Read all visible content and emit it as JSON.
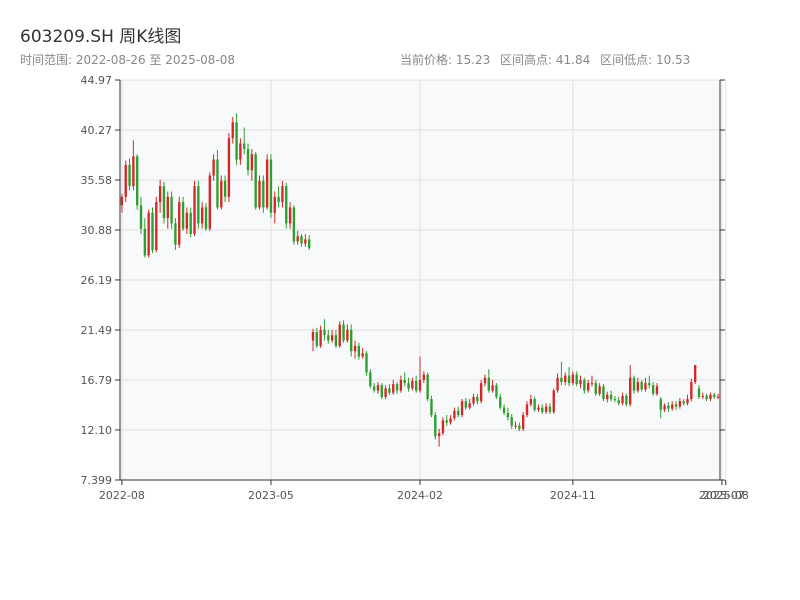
{
  "header": {
    "title": "603209.SH 周K线图",
    "range_label": "时间范围: 2022-08-26 至 2025-08-08",
    "current_price": "当前价格: 15.23",
    "high": "区间高点: 41.84",
    "low": "区间低点: 10.53"
  },
  "colors": {
    "up": "#d62728",
    "down": "#2ca02c",
    "axis": "#333333",
    "grid": "#e0e0e0",
    "plot_bg": "#f8f9fb"
  },
  "chart_data": {
    "type": "candlestick",
    "ylim": [
      7.399,
      44.97
    ],
    "y_ticks": [
      "7.399",
      "12.10",
      "16.79",
      "21.49",
      "26.19",
      "30.88",
      "35.58",
      "40.27",
      "44.97"
    ],
    "x_ticks": [
      {
        "label": "2022-08",
        "week": 0
      },
      {
        "label": "2023-05",
        "week": 39
      },
      {
        "label": "2024-02",
        "week": 78
      },
      {
        "label": "2024-11",
        "week": 118
      },
      {
        "label": "2025-07",
        "week": 157
      },
      {
        "label": "2025-08",
        "week": 158
      }
    ],
    "candles": [
      [
        33.2,
        34.0,
        32.5,
        34.3
      ],
      [
        34.0,
        37.0,
        33.5,
        37.4
      ],
      [
        37.0,
        35.0,
        34.6,
        37.6
      ],
      [
        35.0,
        37.8,
        34.6,
        39.3
      ],
      [
        37.8,
        33.2,
        32.8,
        38.0
      ],
      [
        33.2,
        31.0,
        30.5,
        34.0
      ],
      [
        31.0,
        28.5,
        28.3,
        32.0
      ],
      [
        28.5,
        32.5,
        28.3,
        32.8
      ],
      [
        32.5,
        29.0,
        28.7,
        33.0
      ],
      [
        29.0,
        33.5,
        28.8,
        34.0
      ],
      [
        33.5,
        35.0,
        32.5,
        35.6
      ],
      [
        35.0,
        32.0,
        31.5,
        35.4
      ],
      [
        32.0,
        34.0,
        31.0,
        34.5
      ],
      [
        34.0,
        31.5,
        31.0,
        34.5
      ],
      [
        31.5,
        29.5,
        29.0,
        32.0
      ],
      [
        29.5,
        33.5,
        29.2,
        34.0
      ],
      [
        33.5,
        31.0,
        30.8,
        34.0
      ],
      [
        31.0,
        32.5,
        30.5,
        33.0
      ],
      [
        32.5,
        30.5,
        30.2,
        33.0
      ],
      [
        30.5,
        35.0,
        30.3,
        35.5
      ],
      [
        35.0,
        31.5,
        31.0,
        35.5
      ],
      [
        31.5,
        33.0,
        31.0,
        33.5
      ],
      [
        33.0,
        31.0,
        30.8,
        33.4
      ],
      [
        31.0,
        36.0,
        30.8,
        36.3
      ],
      [
        36.0,
        37.5,
        35.5,
        38.0
      ],
      [
        37.5,
        33.0,
        32.8,
        38.4
      ],
      [
        33.0,
        35.5,
        32.8,
        36.0
      ],
      [
        35.5,
        34.0,
        33.5,
        36.0
      ],
      [
        34.0,
        39.5,
        33.5,
        40.0
      ],
      [
        39.5,
        41.0,
        39.0,
        41.5
      ],
      [
        41.0,
        37.5,
        37.0,
        41.84
      ],
      [
        37.5,
        39.0,
        37.0,
        39.5
      ],
      [
        39.0,
        38.5,
        38.0,
        40.5
      ],
      [
        38.5,
        36.5,
        36.0,
        39.0
      ],
      [
        36.5,
        38.0,
        35.5,
        38.5
      ],
      [
        38.0,
        33.0,
        32.8,
        38.2
      ],
      [
        33.0,
        35.5,
        32.8,
        36.0
      ],
      [
        35.5,
        33.0,
        32.5,
        36.0
      ],
      [
        33.0,
        37.5,
        32.8,
        38.0
      ],
      [
        37.5,
        32.5,
        32.0,
        38.0
      ],
      [
        32.5,
        34.0,
        31.5,
        34.5
      ],
      [
        34.0,
        33.5,
        33.0,
        35.0
      ],
      [
        33.5,
        35.0,
        33.0,
        35.5
      ],
      [
        35.0,
        31.5,
        31.0,
        35.3
      ],
      [
        31.5,
        33.0,
        31.0,
        33.5
      ],
      [
        33.0,
        29.8,
        29.5,
        33.2
      ],
      [
        29.8,
        30.3,
        29.5,
        30.8
      ],
      [
        30.3,
        29.6,
        29.3,
        30.5
      ],
      [
        29.6,
        30.0,
        29.3,
        30.5
      ],
      [
        30.0,
        29.2,
        29.0,
        30.4
      ],
      [
        20.5,
        21.3,
        19.5,
        21.6
      ],
      [
        21.3,
        20.0,
        19.8,
        21.7
      ],
      [
        20.0,
        21.5,
        19.8,
        21.9
      ],
      [
        21.5,
        21.0,
        20.5,
        22.5
      ],
      [
        21.0,
        20.5,
        20.2,
        21.5
      ],
      [
        20.5,
        21.0,
        20.3,
        21.5
      ],
      [
        21.0,
        20.0,
        19.8,
        21.5
      ],
      [
        20.0,
        22.0,
        19.8,
        22.3
      ],
      [
        22.0,
        20.5,
        20.3,
        22.4
      ],
      [
        20.5,
        21.5,
        20.3,
        22.0
      ],
      [
        21.5,
        19.5,
        19.0,
        22.0
      ],
      [
        19.5,
        20.0,
        18.8,
        20.5
      ],
      [
        20.0,
        19.0,
        18.7,
        20.3
      ],
      [
        19.0,
        19.3,
        18.8,
        19.8
      ],
      [
        19.3,
        17.5,
        17.2,
        19.5
      ],
      [
        17.5,
        16.2,
        16.0,
        17.8
      ],
      [
        16.2,
        15.8,
        15.6,
        16.5
      ],
      [
        15.8,
        16.3,
        15.5,
        16.6
      ],
      [
        16.3,
        15.2,
        15.0,
        16.5
      ],
      [
        15.2,
        16.0,
        15.0,
        16.3
      ],
      [
        16.0,
        15.6,
        15.4,
        16.4
      ],
      [
        15.6,
        16.4,
        15.4,
        16.8
      ],
      [
        16.4,
        15.8,
        15.5,
        16.6
      ],
      [
        15.8,
        16.8,
        15.6,
        17.2
      ],
      [
        16.8,
        16.5,
        16.2,
        17.5
      ],
      [
        16.5,
        16.0,
        15.7,
        17.0
      ],
      [
        16.0,
        16.7,
        15.8,
        17.0
      ],
      [
        16.7,
        15.8,
        15.6,
        17.2
      ],
      [
        15.8,
        16.8,
        15.6,
        19.0
      ],
      [
        16.8,
        17.3,
        16.5,
        17.6
      ],
      [
        17.3,
        15.0,
        14.8,
        17.5
      ],
      [
        15.0,
        13.5,
        13.3,
        15.3
      ],
      [
        13.5,
        11.5,
        11.2,
        13.8
      ],
      [
        11.5,
        11.8,
        10.53,
        12.2
      ],
      [
        11.8,
        13.0,
        11.6,
        13.3
      ],
      [
        13.0,
        12.8,
        12.5,
        13.5
      ],
      [
        12.8,
        13.2,
        12.6,
        13.5
      ],
      [
        13.2,
        13.9,
        13.0,
        14.2
      ],
      [
        13.9,
        13.5,
        13.3,
        14.3
      ],
      [
        13.5,
        14.8,
        13.3,
        15.0
      ],
      [
        14.8,
        14.2,
        14.0,
        15.1
      ],
      [
        14.2,
        14.6,
        14.0,
        15.0
      ],
      [
        14.6,
        15.2,
        14.4,
        15.5
      ],
      [
        15.2,
        14.8,
        14.5,
        15.5
      ],
      [
        14.8,
        16.5,
        14.6,
        16.8
      ],
      [
        16.5,
        17.0,
        16.2,
        17.3
      ],
      [
        17.0,
        15.8,
        15.6,
        17.8
      ],
      [
        15.8,
        16.3,
        15.6,
        16.8
      ],
      [
        16.3,
        15.2,
        15.0,
        16.5
      ],
      [
        15.2,
        14.2,
        14.0,
        15.5
      ],
      [
        14.2,
        13.7,
        13.5,
        14.5
      ],
      [
        13.7,
        13.3,
        13.0,
        14.2
      ],
      [
        13.3,
        12.5,
        12.2,
        13.6
      ],
      [
        12.5,
        12.5,
        12.2,
        12.9
      ],
      [
        12.5,
        12.2,
        12.0,
        12.8
      ],
      [
        12.2,
        13.5,
        12.0,
        13.8
      ],
      [
        13.5,
        14.5,
        13.3,
        14.8
      ],
      [
        14.5,
        15.0,
        14.3,
        15.4
      ],
      [
        15.0,
        14.0,
        13.8,
        15.2
      ],
      [
        14.0,
        14.2,
        13.8,
        14.5
      ],
      [
        14.2,
        13.8,
        13.6,
        14.5
      ],
      [
        13.8,
        14.3,
        13.6,
        14.6
      ],
      [
        14.3,
        13.8,
        13.6,
        14.6
      ],
      [
        13.8,
        15.8,
        13.6,
        16.0
      ],
      [
        15.8,
        17.0,
        15.6,
        17.4
      ],
      [
        17.0,
        16.6,
        16.3,
        18.5
      ],
      [
        16.6,
        17.2,
        16.3,
        17.5
      ],
      [
        17.2,
        16.5,
        16.2,
        18.0
      ],
      [
        16.5,
        17.3,
        16.3,
        17.6
      ],
      [
        17.3,
        16.4,
        16.2,
        17.6
      ],
      [
        16.4,
        16.8,
        16.0,
        17.2
      ],
      [
        16.8,
        15.8,
        15.5,
        17.0
      ],
      [
        15.8,
        16.5,
        15.6,
        16.8
      ],
      [
        16.5,
        16.5,
        16.2,
        17.2
      ],
      [
        16.5,
        15.5,
        15.3,
        16.8
      ],
      [
        15.5,
        16.2,
        15.3,
        16.5
      ],
      [
        16.2,
        15.0,
        14.8,
        16.4
      ],
      [
        15.0,
        15.4,
        14.7,
        15.7
      ],
      [
        15.4,
        15.0,
        14.8,
        15.8
      ],
      [
        15.0,
        14.9,
        14.7,
        15.3
      ],
      [
        14.9,
        14.6,
        14.4,
        15.2
      ],
      [
        14.6,
        15.3,
        14.4,
        15.6
      ],
      [
        15.3,
        14.5,
        14.3,
        15.5
      ],
      [
        14.5,
        17.0,
        14.3,
        18.2
      ],
      [
        17.0,
        15.8,
        15.5,
        17.2
      ],
      [
        15.8,
        16.6,
        15.6,
        17.0
      ],
      [
        16.6,
        15.9,
        15.7,
        16.8
      ],
      [
        15.9,
        16.5,
        15.7,
        17.0
      ],
      [
        16.5,
        16.3,
        16.0,
        17.2
      ],
      [
        16.3,
        15.5,
        15.3,
        16.6
      ],
      [
        15.5,
        16.2,
        15.3,
        16.5
      ],
      [
        15.0,
        14.0,
        13.2,
        15.2
      ],
      [
        14.0,
        14.4,
        13.8,
        14.6
      ],
      [
        14.4,
        14.1,
        13.8,
        14.7
      ],
      [
        14.1,
        14.5,
        13.9,
        14.8
      ],
      [
        14.5,
        14.3,
        14.0,
        14.8
      ],
      [
        14.3,
        14.8,
        14.1,
        15.1
      ],
      [
        14.8,
        14.6,
        14.4,
        15.0
      ],
      [
        14.6,
        15.0,
        14.4,
        15.4
      ],
      [
        15.0,
        16.6,
        14.8,
        16.9
      ],
      [
        16.6,
        18.2,
        16.4,
        18.2
      ],
      [
        16.0,
        15.2,
        15.0,
        16.3
      ],
      [
        15.2,
        15.3,
        15.0,
        15.6
      ],
      [
        15.3,
        15.0,
        14.8,
        15.5
      ],
      [
        15.0,
        15.4,
        14.8,
        15.6
      ],
      [
        15.4,
        15.2,
        15.0,
        15.6
      ],
      [
        15.2,
        15.23,
        15.0,
        15.5
      ]
    ]
  }
}
